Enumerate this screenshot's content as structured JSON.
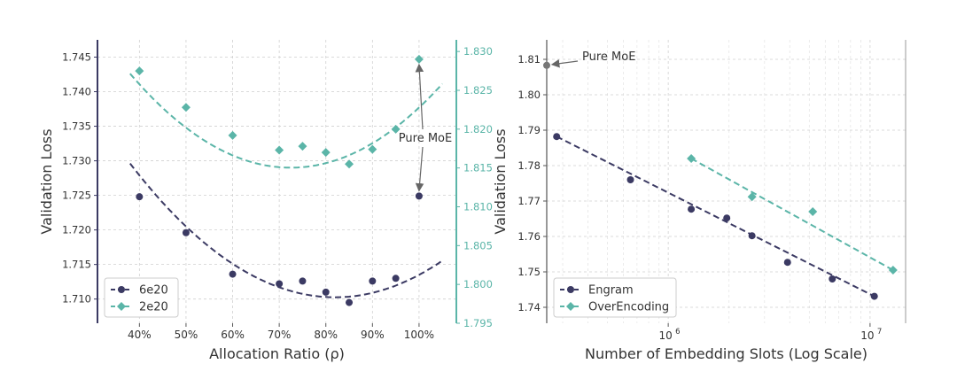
{
  "colors": {
    "engram": "#3b3a63",
    "overencoding": "#5bb5a8",
    "grid": "#d0d0d0",
    "text": "#333333",
    "annotation": "#666666"
  },
  "chart_data": [
    {
      "type": "scatter",
      "xlabel": "Allocation Ratio (ρ)",
      "ylabel": "Validation Loss",
      "x_ticks": [
        40,
        50,
        60,
        70,
        80,
        90,
        100
      ],
      "x_tick_labels": [
        "40%",
        "50%",
        "60%",
        "70%",
        "80%",
        "90%",
        "100%"
      ],
      "xlim": [
        31,
        108
      ],
      "ylim_left": [
        1.7065,
        1.7475
      ],
      "left_ticks": [
        1.71,
        1.715,
        1.72,
        1.725,
        1.73,
        1.735,
        1.74,
        1.745
      ],
      "left_tick_labels": [
        "1.710",
        "1.715",
        "1.720",
        "1.725",
        "1.730",
        "1.735",
        "1.740",
        "1.745"
      ],
      "ylim_right": [
        1.795,
        1.8315
      ],
      "right_ticks": [
        1.795,
        1.8,
        1.805,
        1.81,
        1.815,
        1.82,
        1.825,
        1.83
      ],
      "right_tick_labels": [
        "1.795",
        "1.800",
        "1.805",
        "1.810",
        "1.815",
        "1.820",
        "1.825",
        "1.830"
      ],
      "grid": true,
      "legend_position": "lower-left",
      "series": [
        {
          "name": "6e20",
          "axis": "left",
          "marker": "circle",
          "x": [
            40,
            50,
            60,
            70,
            75,
            80,
            85,
            90,
            95,
            100
          ],
          "y": [
            1.7248,
            1.7196,
            1.7136,
            1.7122,
            1.7126,
            1.711,
            1.7095,
            1.7126,
            1.713,
            1.7249
          ],
          "fit": [
            1e-05,
            -0.00164,
            1.7775
          ]
        },
        {
          "name": "2e20",
          "axis": "right",
          "marker": "diamond",
          "x": [
            40,
            50,
            60,
            70,
            75,
            80,
            85,
            90,
            95,
            100
          ],
          "y": [
            1.8275,
            1.8228,
            1.8192,
            1.8173,
            1.8178,
            1.817,
            1.8155,
            1.8174,
            1.82,
            1.829
          ],
          "fit": [
            1.02e-05,
            -0.001478,
            1.86858
          ]
        }
      ],
      "annotation": {
        "text": "Pure MoE"
      }
    },
    {
      "type": "scatter",
      "xlabel": "Number of Embedding Slots (Log Scale)",
      "ylabel": "Validation Loss",
      "x_scale": "log",
      "xlim": [
        250000,
        15000000
      ],
      "x_ticks": [
        1000000,
        10000000
      ],
      "x_tick_labels": [
        "10",
        "10"
      ],
      "x_tick_exponents": [
        "6",
        "7"
      ],
      "ylim": [
        1.7355,
        1.8155
      ],
      "y_ticks": [
        1.74,
        1.75,
        1.76,
        1.77,
        1.78,
        1.79,
        1.8,
        1.81
      ],
      "y_tick_labels": [
        "1.74",
        "1.75",
        "1.76",
        "1.77",
        "1.78",
        "1.79",
        "1.80",
        "1.81"
      ],
      "grid": true,
      "legend_position": "lower-left",
      "series": [
        {
          "name": "Engram",
          "marker": "circle",
          "x": [
            280000,
            650000,
            1300000,
            1950000,
            2600000,
            3900000,
            6500000,
            10500000
          ],
          "y": [
            1.7882,
            1.776,
            1.7677,
            1.7652,
            1.7602,
            1.7527,
            1.748,
            1.7431
          ],
          "fit_line": {
            "x": [
              280000,
              10500000
            ],
            "y": [
              1.7882,
              1.7431
            ]
          }
        },
        {
          "name": "OverEncoding",
          "marker": "diamond",
          "x": [
            1300000,
            2600000,
            5200000,
            13000000
          ],
          "y": [
            1.782,
            1.7712,
            1.767,
            1.7505
          ],
          "fit_line": {
            "x": [
              1300000,
              13000000
            ],
            "y": [
              1.782,
              1.7505
            ]
          }
        }
      ],
      "pure_moe_point": {
        "x": 250000,
        "y": 1.8083
      },
      "annotation": {
        "text": "Pure MoE"
      }
    }
  ]
}
